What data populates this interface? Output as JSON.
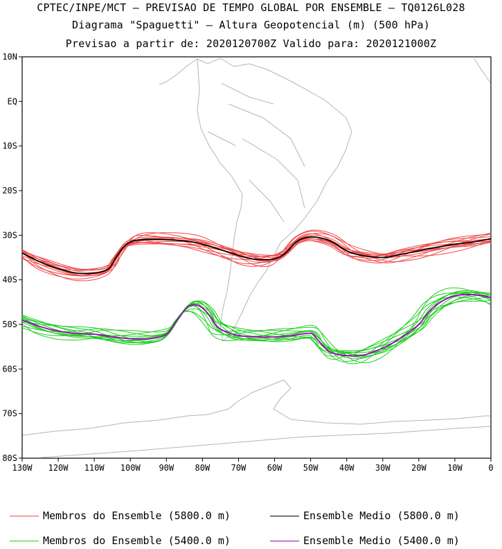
{
  "header": {
    "line1": "CPTEC/INPE/MCT — PREVISAO DE TEMPO GLOBAL POR ENSEMBLE — TQ0126L028",
    "line2": "Diagrama \"Spaguetti\" — Altura Geopotencial (m) (500 hPa)",
    "line3": "Previsao a partir de: 2020120700Z  Valido para: 2020121000Z"
  },
  "colors": {
    "members_5800": "#f04848",
    "mean_5800": "#000000",
    "members_5400": "#22cc22",
    "mean_5400": "#a000c0",
    "coastline": "#b4b4b4"
  },
  "chart_data": {
    "type": "line",
    "x_unit": "longitude (deg, negative = W)",
    "y_unit": "latitude (deg, negative = S)",
    "xlim": [
      -130,
      0
    ],
    "ylim": [
      -80,
      10
    ],
    "xticks": [
      {
        "value": -130,
        "label": "130W"
      },
      {
        "value": -120,
        "label": "120W"
      },
      {
        "value": -110,
        "label": "110W"
      },
      {
        "value": -100,
        "label": "100W"
      },
      {
        "value": -90,
        "label": "90W"
      },
      {
        "value": -80,
        "label": "80W"
      },
      {
        "value": -70,
        "label": "70W"
      },
      {
        "value": -60,
        "label": "60W"
      },
      {
        "value": -50,
        "label": "50W"
      },
      {
        "value": -40,
        "label": "40W"
      },
      {
        "value": -30,
        "label": "30W"
      },
      {
        "value": -20,
        "label": "20W"
      },
      {
        "value": -10,
        "label": "10W"
      },
      {
        "value": 0,
        "label": "0"
      }
    ],
    "yticks": [
      {
        "value": 10,
        "label": "10N"
      },
      {
        "value": 0,
        "label": "EQ"
      },
      {
        "value": -10,
        "label": "10S"
      },
      {
        "value": -20,
        "label": "20S"
      },
      {
        "value": -30,
        "label": "30S"
      },
      {
        "value": -40,
        "label": "40S"
      },
      {
        "value": -50,
        "label": "50S"
      },
      {
        "value": -60,
        "label": "60S"
      },
      {
        "value": -70,
        "label": "70S"
      },
      {
        "value": -80,
        "label": "80S"
      }
    ],
    "series": [
      {
        "name": "Ensemble Medio (5800.0 m)",
        "color_key": "mean_5800",
        "x": [
          -130,
          -125,
          -120,
          -115,
          -110,
          -106,
          -104,
          -101,
          -97,
          -90,
          -83,
          -78,
          -72,
          -68,
          -64,
          -60,
          -57,
          -54,
          -51,
          -48,
          -44,
          -40,
          -36,
          -30,
          -25,
          -20,
          -15,
          -10,
          -5,
          0
        ],
        "y": [
          -34,
          -36,
          -37.5,
          -38.5,
          -38.5,
          -37.5,
          -35,
          -32,
          -31,
          -31,
          -31.5,
          -32.5,
          -34,
          -35,
          -35.5,
          -35.3,
          -34,
          -31.5,
          -30.5,
          -30.5,
          -31.5,
          -33.5,
          -34.5,
          -35,
          -34.3,
          -33.5,
          -32.7,
          -32,
          -31.5,
          -30.8
        ]
      },
      {
        "name": "Ensemble Medio (5400.0 m)",
        "color_key": "mean_5400",
        "x": [
          -130,
          -125,
          -120,
          -115,
          -110,
          -105,
          -100,
          -95,
          -90,
          -87,
          -84,
          -81,
          -78,
          -76,
          -73,
          -70,
          -65,
          -60,
          -55,
          -50,
          -48,
          -45,
          -42,
          -40,
          -36,
          -32,
          -28,
          -24,
          -20,
          -17,
          -14,
          -10,
          -6,
          -3,
          0
        ],
        "y": [
          -49,
          -50.5,
          -51.5,
          -52,
          -52.2,
          -52.8,
          -53.2,
          -53.2,
          -52.2,
          -49,
          -46,
          -45.8,
          -48,
          -50.5,
          -51.8,
          -52.5,
          -52.8,
          -52.8,
          -52.5,
          -52,
          -53.5,
          -56,
          -56.8,
          -57,
          -57,
          -56,
          -54.5,
          -52.5,
          -50,
          -47,
          -45,
          -43.6,
          -43.3,
          -43.5,
          -44
        ]
      }
    ],
    "ensemble_members": [
      {
        "label": "Membros do Ensemble (5800.0 m)",
        "color_key": "members_5800",
        "count": 12,
        "spread_lon": 3.0,
        "spread_lat": 1.6,
        "base_series": 0
      },
      {
        "label": "Membros do Ensemble (5400.0 m)",
        "color_key": "members_5400",
        "count": 12,
        "spread_lon": 3.0,
        "spread_lat": 1.8,
        "base_series": 1
      }
    ]
  },
  "legend": [
    {
      "label": "Membros do Ensemble (5800.0 m)",
      "color_key": "members_5800"
    },
    {
      "label": "Ensemble Medio (5800.0 m)",
      "color_key": "mean_5800"
    },
    {
      "label": "Membros do Ensemble (5400.0 m)",
      "color_key": "members_5400"
    },
    {
      "label": "Ensemble Medio (5400.0 m)",
      "color_key": "mean_5400"
    }
  ]
}
